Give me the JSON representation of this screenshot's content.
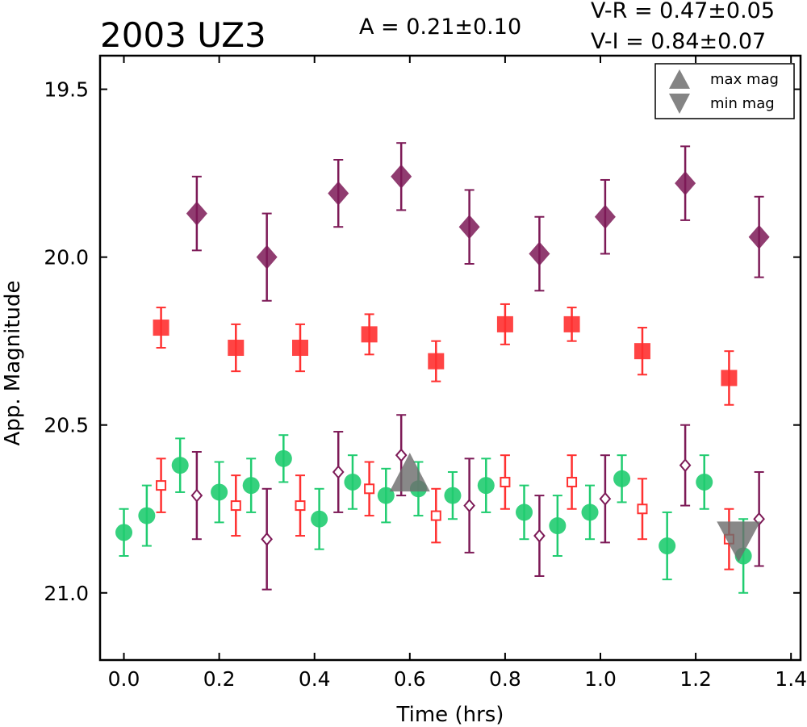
{
  "chart_data": {
    "type": "scatter",
    "title": "2003 UZ3",
    "annotations": {
      "amplitude": "A  = 0.21±0.10",
      "v_r": "V-R = 0.47±0.05",
      "v_i": "V-I  = 0.84±0.07"
    },
    "xlabel": "Time (hrs)",
    "ylabel": "App. Magnitude",
    "xlim": [
      -0.05,
      1.42
    ],
    "ylim": [
      21.2,
      19.4
    ],
    "y_inverted": true,
    "xticks": [
      "0.0",
      "0.2",
      "0.4",
      "0.6",
      "0.8",
      "1.0",
      "1.2",
      "1.4"
    ],
    "yticks": [
      "19.5",
      "20.0",
      "20.5",
      "21.0"
    ],
    "grid": false,
    "legend": {
      "position": "top-right",
      "entries": [
        "max mag",
        "min mag"
      ]
    },
    "colors": {
      "purple": "#7d1a57",
      "red": "#ff3030",
      "green": "#20cc70",
      "marker_gray": "#6e6e6e"
    },
    "series": [
      {
        "marker": "filled-diamond",
        "color": "#7d1a57",
        "x": [
          0.153,
          0.3,
          0.45,
          0.582,
          0.725,
          0.872,
          1.01,
          1.178,
          1.333
        ],
        "y": [
          19.87,
          20.0,
          19.81,
          19.76,
          19.91,
          19.99,
          19.88,
          19.78,
          19.94
        ],
        "err": [
          0.11,
          0.13,
          0.1,
          0.1,
          0.11,
          0.11,
          0.11,
          0.11,
          0.12
        ]
      },
      {
        "marker": "filled-square",
        "color": "#ff3030",
        "x": [
          0.078,
          0.235,
          0.37,
          0.515,
          0.655,
          0.8,
          0.94,
          1.088,
          1.27
        ],
        "y": [
          20.21,
          20.27,
          20.27,
          20.23,
          20.31,
          20.2,
          20.2,
          20.28,
          20.36
        ],
        "err": [
          0.06,
          0.07,
          0.07,
          0.06,
          0.06,
          0.06,
          0.05,
          0.07,
          0.08
        ]
      },
      {
        "marker": "open-square",
        "color": "#ff3030",
        "x": [
          0.078,
          0.235,
          0.37,
          0.515,
          0.655,
          0.8,
          0.94,
          1.088,
          1.27
        ],
        "y": [
          20.68,
          20.74,
          20.74,
          20.69,
          20.77,
          20.67,
          20.67,
          20.75,
          20.84
        ],
        "err": [
          0.08,
          0.09,
          0.09,
          0.08,
          0.08,
          0.08,
          0.08,
          0.09,
          0.09
        ]
      },
      {
        "marker": "open-diamond",
        "color": "#7d1a57",
        "x": [
          0.153,
          0.3,
          0.45,
          0.582,
          0.725,
          0.872,
          1.01,
          1.178,
          1.333
        ],
        "y": [
          20.71,
          20.84,
          20.64,
          20.59,
          20.74,
          20.83,
          20.72,
          20.62,
          20.78
        ],
        "err": [
          0.13,
          0.15,
          0.12,
          0.12,
          0.14,
          0.12,
          0.13,
          0.12,
          0.14
        ]
      },
      {
        "marker": "filled-circle",
        "color": "#20cc70",
        "x": [
          0.0,
          0.048,
          0.118,
          0.2,
          0.267,
          0.335,
          0.41,
          0.48,
          0.55,
          0.618,
          0.69,
          0.76,
          0.84,
          0.91,
          0.978,
          1.045,
          1.14,
          1.218,
          1.3
        ],
        "y": [
          20.82,
          20.77,
          20.62,
          20.7,
          20.68,
          20.6,
          20.78,
          20.67,
          20.71,
          20.69,
          20.71,
          20.68,
          20.76,
          20.8,
          20.76,
          20.66,
          20.86,
          20.67,
          20.89
        ],
        "err": [
          0.07,
          0.09,
          0.08,
          0.09,
          0.08,
          0.07,
          0.09,
          0.08,
          0.08,
          0.08,
          0.07,
          0.08,
          0.08,
          0.09,
          0.08,
          0.07,
          0.1,
          0.08,
          0.11
        ]
      }
    ],
    "markers": [
      {
        "name": "max mag",
        "shape": "triangle-up",
        "x": 0.6,
        "y": 20.65
      },
      {
        "name": "min mag",
        "shape": "triangle-down",
        "x": 1.29,
        "y": 20.85
      }
    ]
  }
}
